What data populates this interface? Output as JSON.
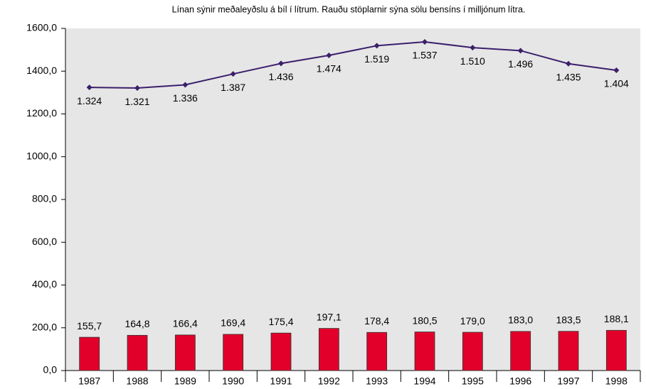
{
  "chart_data": {
    "type": "bar",
    "title": "Línan sýnir meðaleyðslu á bíl í lítrum. Rauðu stöplarnir sýna sölu bensíns í milljónum lítra.",
    "categories": [
      "1987",
      "1988",
      "1989",
      "1990",
      "1991",
      "1992",
      "1993",
      "1994",
      "1995",
      "1996",
      "1997",
      "1998"
    ],
    "series": [
      {
        "type": "bar",
        "color": "#e2002a",
        "values": [
          155.7,
          164.8,
          166.4,
          169.4,
          175.4,
          197.1,
          178.4,
          180.5,
          179.0,
          183.0,
          183.5,
          188.1
        ],
        "value_labels": [
          "155,7",
          "164,8",
          "166,4",
          "169,4",
          "175,4",
          "197,1",
          "178,4",
          "180,5",
          "179,0",
          "183,0",
          "183,5",
          "188,1"
        ]
      },
      {
        "type": "line",
        "color": "#3b1f6b",
        "values": [
          1324,
          1321,
          1336,
          1387,
          1436,
          1474,
          1519,
          1537,
          1510,
          1496,
          1435,
          1404
        ],
        "value_labels": [
          "1.324",
          "1.321",
          "1.336",
          "1.387",
          "1.436",
          "1.474",
          "1.519",
          "1.537",
          "1.510",
          "1.496",
          "1.435",
          "1.404"
        ]
      }
    ],
    "ylim": [
      0,
      1600
    ],
    "yticks": [
      {
        "value": 0,
        "label": "0,0"
      },
      {
        "value": 200,
        "label": "200,0"
      },
      {
        "value": 400,
        "label": "400,0"
      },
      {
        "value": 600,
        "label": "600,0"
      },
      {
        "value": 800,
        "label": "800,0"
      },
      {
        "value": 1000,
        "label": "1000,0"
      },
      {
        "value": 1200,
        "label": "1200,0"
      },
      {
        "value": 1400,
        "label": "1400,0"
      },
      {
        "value": 1600,
        "label": "1600,0"
      }
    ]
  }
}
